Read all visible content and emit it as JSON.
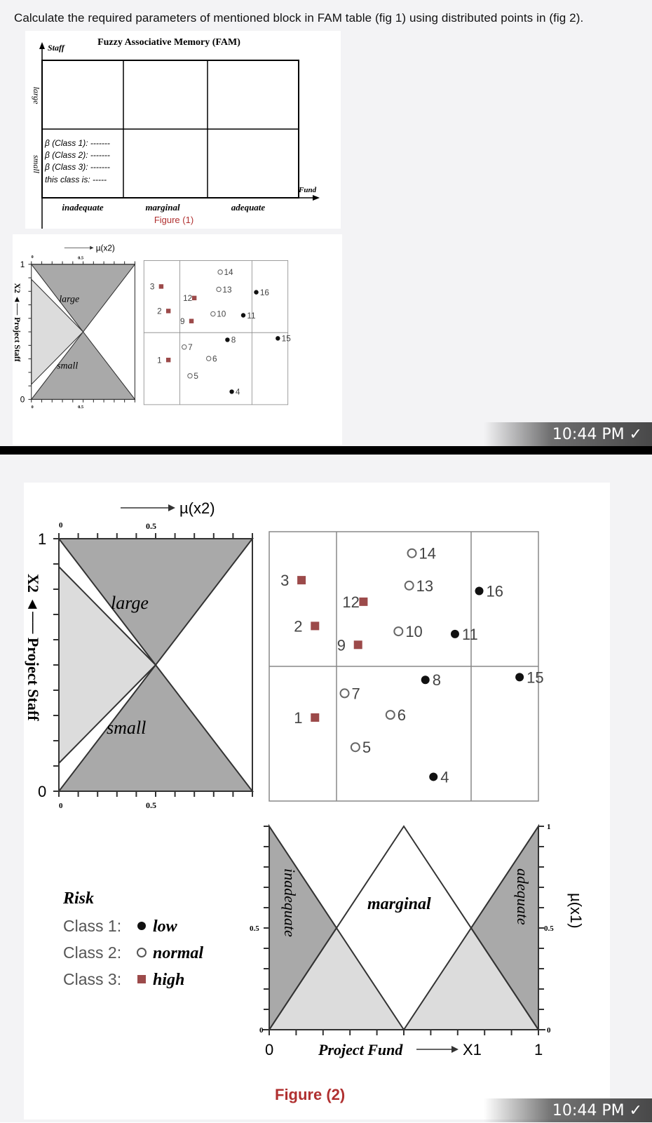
{
  "question": "Calculate the required parameters of mentioned block in FAM table (fig 1) using distributed points in (fig 2).",
  "fam": {
    "title": "Fuzzy Associative Memory (FAM)",
    "y_axis": "Staff",
    "x_axis": "Fund",
    "rows": [
      "large",
      "small"
    ],
    "cols": [
      "inadequate",
      "marginal",
      "adequate"
    ],
    "cell_lines": [
      "β (Class 1): -------",
      "β (Class 2): -------",
      "β (Class 3): -------",
      "this class is: -----"
    ],
    "caption": "Figure (1)"
  },
  "fig2": {
    "y_membership_label": "µ(x2)",
    "y_axis_label": "X2 ◄── Project Staff",
    "x_axis_label": "Project Fund",
    "x_var": "X1",
    "x_membership_label": "µ(x1)",
    "sets_staff": [
      "large",
      "small"
    ],
    "sets_fund": [
      "inadequate",
      "marginal",
      "adequate"
    ],
    "ticks": {
      "zero": "0",
      "half": "0.5",
      "one": "1"
    },
    "caption": "Figure (2)",
    "legend_title": "Risk",
    "legend": [
      {
        "label": "Class 1:",
        "name": "low",
        "marker": "filled-circle"
      },
      {
        "label": "Class 2:",
        "name": "normal",
        "marker": "open-circle"
      },
      {
        "label": "Class 3:",
        "name": "high",
        "marker": "square"
      }
    ],
    "points": [
      {
        "id": "1",
        "class": 3,
        "x": 0.17,
        "y": 0.31
      },
      {
        "id": "2",
        "class": 3,
        "x": 0.17,
        "y": 0.65
      },
      {
        "id": "3",
        "class": 3,
        "x": 0.12,
        "y": 0.82
      },
      {
        "id": "4",
        "class": 1,
        "x": 0.61,
        "y": 0.09
      },
      {
        "id": "5",
        "class": 2,
        "x": 0.32,
        "y": 0.2
      },
      {
        "id": "6",
        "class": 2,
        "x": 0.45,
        "y": 0.32
      },
      {
        "id": "7",
        "class": 2,
        "x": 0.28,
        "y": 0.4
      },
      {
        "id": "8",
        "class": 1,
        "x": 0.58,
        "y": 0.45
      },
      {
        "id": "9",
        "class": 3,
        "x": 0.33,
        "y": 0.58
      },
      {
        "id": "10",
        "class": 2,
        "x": 0.48,
        "y": 0.63
      },
      {
        "id": "11",
        "class": 1,
        "x": 0.69,
        "y": 0.62
      },
      {
        "id": "12",
        "class": 3,
        "x": 0.35,
        "y": 0.74
      },
      {
        "id": "13",
        "class": 2,
        "x": 0.52,
        "y": 0.8
      },
      {
        "id": "14",
        "class": 2,
        "x": 0.53,
        "y": 0.92
      },
      {
        "id": "15",
        "class": 1,
        "x": 0.93,
        "y": 0.46
      },
      {
        "id": "16",
        "class": 1,
        "x": 0.78,
        "y": 0.78
      }
    ],
    "class_colors": {
      "1": "#111111",
      "2": "#666666",
      "3": "#9c4a4a"
    }
  },
  "status": {
    "time": "10:44 PM ✓"
  }
}
